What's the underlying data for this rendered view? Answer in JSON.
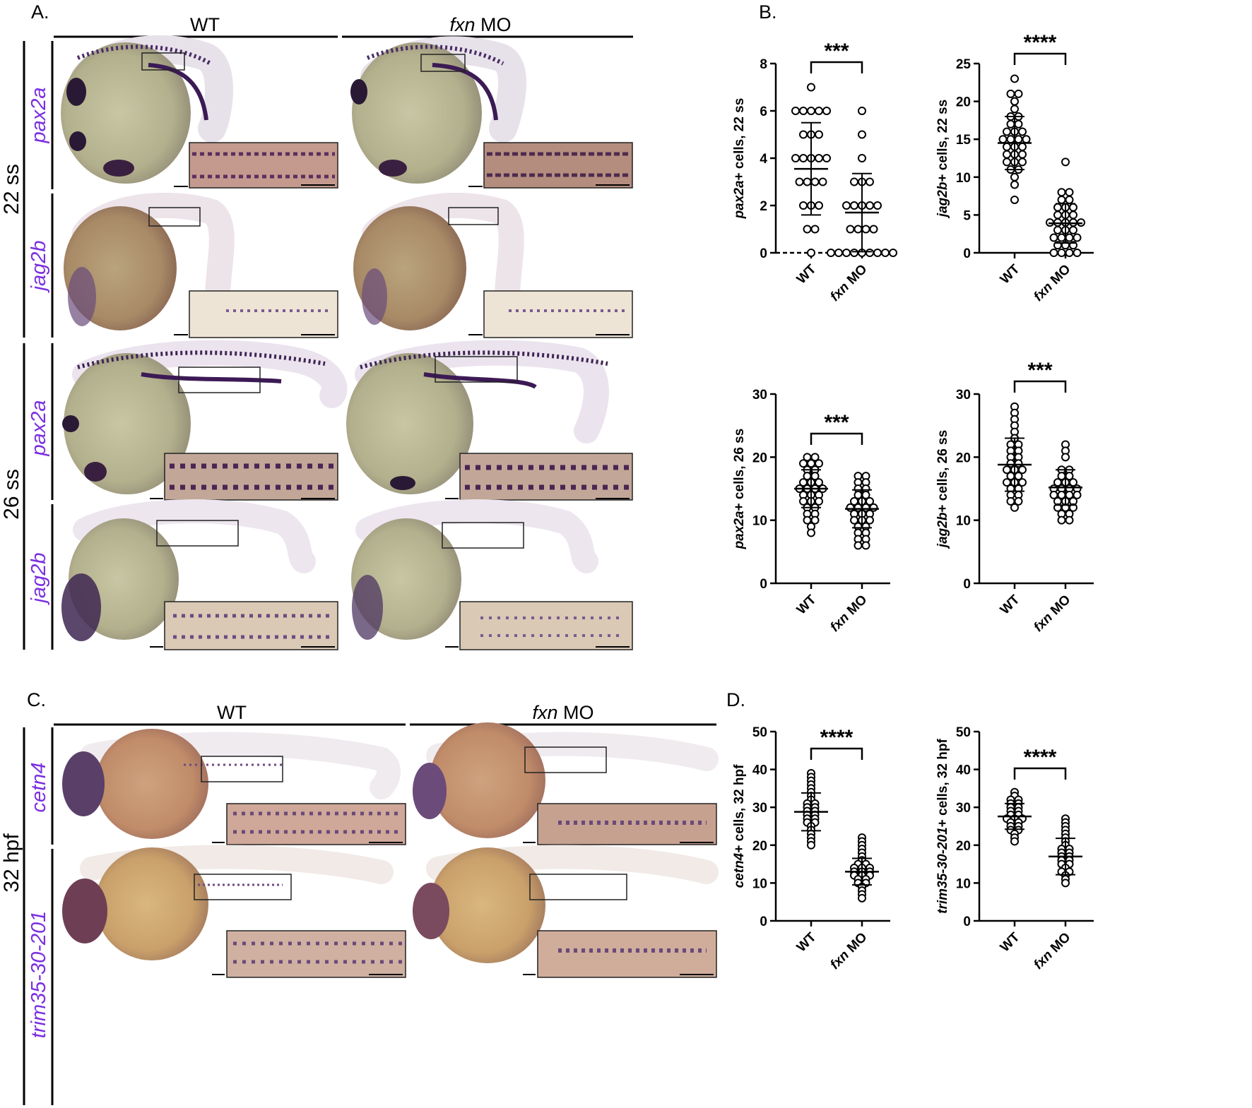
{
  "panels": {
    "A": "A.",
    "B": "B.",
    "C": "C.",
    "D": "D."
  },
  "columns": {
    "wt": "WT",
    "fxn_italic": "fxn",
    "fxn_rest": " MO"
  },
  "stages": {
    "ss22": "22 ss",
    "ss26": "26 ss",
    "hpf32": "32 hpf"
  },
  "genes": {
    "pax2a": "pax2a",
    "jag2b": "jag2b",
    "cetn4": "cetn4",
    "trim": "trim35-30-201"
  },
  "colors": {
    "gene_label": "#7b2fe0",
    "stain": "#3c1a55"
  },
  "chart_data": [
    {
      "id": "b1",
      "type": "scatter",
      "ylabel_italic": "pax2a",
      "ylabel_rest": "+ cells, 22 ss",
      "ylim": [
        0,
        8
      ],
      "yticks": [
        0,
        2,
        4,
        6,
        8
      ],
      "categories": [
        "WT",
        "fxn MO"
      ],
      "series": [
        {
          "values": [
            7,
            6,
            6,
            6,
            6,
            6,
            5,
            5,
            5,
            4,
            4,
            4,
            4,
            4,
            3,
            3,
            3,
            3,
            2,
            2,
            2,
            1,
            1,
            0
          ],
          "mean": 3.55,
          "sd": 1.95
        },
        {
          "values": [
            6,
            5,
            4,
            3,
            3,
            3,
            2,
            2,
            2,
            2,
            2,
            1,
            1,
            1,
            1,
            0,
            0,
            0,
            0,
            0,
            0,
            0,
            0,
            0
          ],
          "mean": 1.7,
          "sd": 1.65
        }
      ],
      "significance": "***",
      "zero_dashed": true
    },
    {
      "id": "b2",
      "type": "scatter",
      "ylabel_italic": "jag2b",
      "ylabel_rest": "+ cells, 22 ss",
      "ylim": [
        0,
        25
      ],
      "yticks": [
        0,
        5,
        10,
        15,
        20,
        25
      ],
      "categories": [
        "WT",
        "fxn MO"
      ],
      "series": [
        {
          "values": [
            23,
            21,
            21,
            20,
            19,
            18,
            18,
            17,
            17,
            16,
            16,
            16,
            15,
            15,
            15,
            15,
            14,
            14,
            14,
            13,
            13,
            13,
            12,
            12,
            12,
            11,
            11,
            10,
            9,
            7
          ],
          "mean": 14.5,
          "sd": 3.5
        },
        {
          "values": [
            12,
            8,
            8,
            7,
            7,
            6,
            6,
            6,
            5,
            5,
            5,
            4,
            4,
            4,
            4,
            4,
            3,
            3,
            3,
            2,
            2,
            2,
            2,
            1,
            1,
            1,
            0,
            0,
            0,
            0
          ],
          "mean": 3.9,
          "sd": 2.6
        }
      ],
      "significance": "****",
      "zero_dashed": false
    },
    {
      "id": "b3",
      "type": "scatter",
      "ylabel_italic": "pax2a",
      "ylabel_rest": "+ cells, 26 ss",
      "ylim": [
        0,
        30
      ],
      "yticks": [
        0,
        10,
        20,
        30
      ],
      "categories": [
        "WT",
        "fxn MO"
      ],
      "series": [
        {
          "values": [
            20,
            20,
            19,
            19,
            19,
            18,
            18,
            17,
            17,
            16,
            16,
            16,
            15,
            15,
            15,
            15,
            14,
            14,
            14,
            13,
            13,
            13,
            12,
            12,
            11,
            11,
            10,
            10,
            9,
            8
          ],
          "mean": 15.0,
          "sd": 3.0
        },
        {
          "values": [
            17,
            17,
            16,
            16,
            15,
            15,
            14,
            14,
            13,
            13,
            13,
            12,
            12,
            12,
            12,
            11,
            11,
            11,
            10,
            10,
            10,
            9,
            9,
            8,
            8,
            7,
            7,
            6,
            6
          ],
          "mean": 11.8,
          "sd": 3.0
        }
      ],
      "significance": "***",
      "zero_dashed": false
    },
    {
      "id": "b4",
      "type": "scatter",
      "ylabel_italic": "jag2b",
      "ylabel_rest": "+ cells, 26 ss",
      "ylim": [
        0,
        30
      ],
      "yticks": [
        0,
        10,
        20,
        30
      ],
      "categories": [
        "WT",
        "fxn MO"
      ],
      "series": [
        {
          "values": [
            28,
            27,
            26,
            25,
            24,
            23,
            22,
            22,
            21,
            21,
            20,
            20,
            19,
            19,
            18,
            18,
            18,
            17,
            17,
            16,
            16,
            16,
            15,
            15,
            14,
            14,
            13,
            13,
            12
          ],
          "mean": 18.8,
          "sd": 4.2
        },
        {
          "values": [
            22,
            21,
            20,
            18,
            18,
            17,
            17,
            16,
            16,
            16,
            15,
            15,
            15,
            15,
            14,
            14,
            14,
            14,
            13,
            13,
            13,
            12,
            12,
            12,
            11,
            11,
            10,
            10
          ],
          "mean": 15.2,
          "sd": 2.8
        }
      ],
      "significance": "***",
      "zero_dashed": false
    },
    {
      "id": "d1",
      "type": "scatter",
      "ylabel_italic": "cetn4",
      "ylabel_rest": "+ cells, 32 hpf",
      "ylim": [
        0,
        50
      ],
      "yticks": [
        0,
        10,
        20,
        30,
        40,
        50
      ],
      "categories": [
        "WT",
        "fxn MO"
      ],
      "series": [
        {
          "values": [
            39,
            38,
            37,
            36,
            35,
            34,
            33,
            32,
            31,
            31,
            30,
            30,
            29,
            29,
            28,
            28,
            27,
            27,
            26,
            26,
            25,
            24,
            23,
            22,
            21,
            20
          ],
          "mean": 28.8,
          "sd": 5.0
        },
        {
          "values": [
            22,
            21,
            20,
            19,
            18,
            17,
            16,
            15,
            15,
            14,
            14,
            14,
            13,
            13,
            13,
            12,
            12,
            12,
            11,
            11,
            10,
            10,
            9,
            8,
            7,
            6
          ],
          "mean": 13.0,
          "sd": 3.5
        }
      ],
      "significance": "****",
      "zero_dashed": false
    },
    {
      "id": "d2",
      "type": "scatter",
      "ylabel_italic": "trim35-30-201",
      "ylabel_rest": "+ cells, 32 hpf",
      "ylim": [
        0,
        50
      ],
      "yticks": [
        0,
        10,
        20,
        30,
        40,
        50
      ],
      "categories": [
        "WT",
        "fxn MO"
      ],
      "series": [
        {
          "values": [
            34,
            33,
            32,
            32,
            31,
            31,
            30,
            30,
            29,
            29,
            28,
            28,
            27,
            27,
            27,
            26,
            26,
            25,
            25,
            24,
            24,
            23,
            22,
            21
          ],
          "mean": 27.6,
          "sd": 3.4
        },
        {
          "values": [
            27,
            26,
            25,
            24,
            23,
            22,
            21,
            20,
            19,
            19,
            18,
            18,
            17,
            17,
            16,
            16,
            15,
            15,
            14,
            13,
            13,
            12,
            11,
            10
          ],
          "mean": 17.0,
          "sd": 4.8
        }
      ],
      "significance": "****",
      "zero_dashed": false
    }
  ]
}
